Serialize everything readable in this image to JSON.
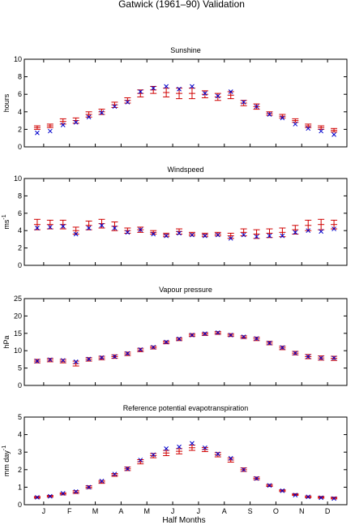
{
  "figure_title": "Gatwick (1961–90) Validation",
  "x_axis": {
    "label": "Half Months",
    "month_ticks": [
      "J",
      "F",
      "M",
      "A",
      "M",
      "J",
      "J",
      "A",
      "S",
      "O",
      "N",
      "D"
    ]
  },
  "colors": {
    "observed": "#d00000",
    "modelled": "#0000cc"
  },
  "chart_data": [
    {
      "type": "scatter",
      "title": "Sunshine",
      "ylabel": "hours",
      "ylim": [
        0,
        10
      ],
      "yticks": [
        0,
        2,
        4,
        6,
        8,
        10
      ],
      "x": [
        1,
        2,
        3,
        4,
        5,
        6,
        7,
        8,
        9,
        10,
        11,
        12,
        13,
        14,
        15,
        16,
        17,
        18,
        19,
        20,
        21,
        22,
        23,
        24
      ],
      "observed_mean": [
        2.2,
        2.4,
        2.9,
        3.0,
        3.7,
        4.0,
        4.8,
        5.3,
        6.1,
        6.5,
        6.2,
        6.1,
        6.1,
        6.0,
        5.7,
        5.9,
        5.0,
        4.6,
        3.8,
        3.5,
        3.0,
        2.4,
        2.2,
        1.9
      ],
      "observed_err": [
        0.2,
        0.2,
        0.3,
        0.3,
        0.3,
        0.3,
        0.3,
        0.3,
        0.4,
        0.4,
        0.5,
        0.6,
        0.6,
        0.4,
        0.4,
        0.4,
        0.3,
        0.3,
        0.2,
        0.2,
        0.2,
        0.2,
        0.2,
        0.2
      ],
      "modelled": [
        1.6,
        1.8,
        2.5,
        2.8,
        3.4,
        3.9,
        4.6,
        5.1,
        6.3,
        6.7,
        6.9,
        6.6,
        6.9,
        6.1,
        5.8,
        6.3,
        5.1,
        4.6,
        3.7,
        3.3,
        2.6,
        2.1,
        1.8,
        1.4
      ]
    },
    {
      "type": "scatter",
      "title": "Windspeed",
      "ylabel": "ms^-1",
      "ylim": [
        0,
        10
      ],
      "yticks": [
        0,
        2,
        4,
        6,
        8,
        10
      ],
      "x": [
        1,
        2,
        3,
        4,
        5,
        6,
        7,
        8,
        9,
        10,
        11,
        12,
        13,
        14,
        15,
        16,
        17,
        18,
        19,
        20,
        21,
        22,
        23,
        24
      ],
      "observed_mean": [
        4.7,
        4.7,
        4.7,
        4.0,
        4.6,
        4.8,
        4.5,
        4.0,
        4.1,
        3.8,
        3.5,
        3.9,
        3.6,
        3.5,
        3.6,
        3.4,
        3.8,
        3.6,
        3.7,
        3.8,
        4.1,
        4.6,
        4.7,
        4.7
      ],
      "observed_err": [
        0.6,
        0.5,
        0.5,
        0.4,
        0.5,
        0.5,
        0.5,
        0.3,
        0.3,
        0.2,
        0.2,
        0.3,
        0.2,
        0.2,
        0.2,
        0.3,
        0.4,
        0.5,
        0.5,
        0.5,
        0.5,
        0.6,
        0.6,
        0.5
      ],
      "modelled": [
        4.3,
        4.4,
        4.5,
        3.6,
        4.3,
        4.6,
        4.3,
        3.8,
        4.1,
        3.6,
        3.4,
        3.7,
        3.5,
        3.4,
        3.5,
        3.1,
        3.5,
        3.3,
        3.4,
        3.4,
        3.8,
        4.0,
        3.9,
        4.2
      ]
    },
    {
      "type": "scatter",
      "title": "Vapour pressure",
      "ylabel": "hPa",
      "ylim": [
        0,
        25
      ],
      "yticks": [
        0,
        5,
        10,
        15,
        20,
        25
      ],
      "x": [
        1,
        2,
        3,
        4,
        5,
        6,
        7,
        8,
        9,
        10,
        11,
        12,
        13,
        14,
        15,
        16,
        17,
        18,
        19,
        20,
        21,
        22,
        23,
        24
      ],
      "observed_mean": [
        7.0,
        7.3,
        7.0,
        6.3,
        7.5,
        7.9,
        8.3,
        9.1,
        10.2,
        10.9,
        12.4,
        13.3,
        14.5,
        14.8,
        15.1,
        14.5,
        13.9,
        13.4,
        12.2,
        10.8,
        9.3,
        8.3,
        7.9,
        7.8
      ],
      "observed_err": [
        0.5,
        0.5,
        0.5,
        0.7,
        0.5,
        0.5,
        0.5,
        0.5,
        0.5,
        0.4,
        0.4,
        0.4,
        0.4,
        0.4,
        0.4,
        0.4,
        0.4,
        0.5,
        0.5,
        0.5,
        0.5,
        0.6,
        0.6,
        0.6
      ],
      "modelled": [
        7.0,
        7.4,
        7.2,
        6.8,
        7.6,
        8.0,
        8.3,
        9.2,
        10.3,
        11.0,
        12.5,
        13.4,
        14.5,
        14.9,
        15.2,
        14.5,
        14.0,
        13.5,
        12.2,
        10.9,
        9.3,
        8.3,
        7.9,
        7.9
      ]
    },
    {
      "type": "scatter",
      "title": "Reference potential evapotranspiration",
      "ylabel": "mm day^-1",
      "ylim": [
        0,
        5
      ],
      "yticks": [
        0,
        1,
        2,
        3,
        4,
        5
      ],
      "x": [
        1,
        2,
        3,
        4,
        5,
        6,
        7,
        8,
        9,
        10,
        11,
        12,
        13,
        14,
        15,
        16,
        17,
        18,
        19,
        20,
        21,
        22,
        23,
        24
      ],
      "observed_mean": [
        0.42,
        0.48,
        0.62,
        0.72,
        1.0,
        1.3,
        1.7,
        2.05,
        2.45,
        2.8,
        2.95,
        3.05,
        3.25,
        3.15,
        2.85,
        2.55,
        2.0,
        1.5,
        1.1,
        0.8,
        0.58,
        0.45,
        0.42,
        0.38
      ],
      "observed_err": [
        0.05,
        0.05,
        0.06,
        0.08,
        0.08,
        0.08,
        0.08,
        0.1,
        0.12,
        0.12,
        0.15,
        0.15,
        0.15,
        0.12,
        0.12,
        0.12,
        0.1,
        0.08,
        0.06,
        0.05,
        0.05,
        0.05,
        0.05,
        0.05
      ],
      "modelled": [
        0.42,
        0.48,
        0.65,
        0.75,
        1.0,
        1.35,
        1.75,
        2.05,
        2.55,
        2.85,
        3.2,
        3.3,
        3.5,
        3.25,
        2.9,
        2.65,
        2.0,
        1.5,
        1.1,
        0.8,
        0.55,
        0.45,
        0.4,
        0.35
      ]
    }
  ]
}
